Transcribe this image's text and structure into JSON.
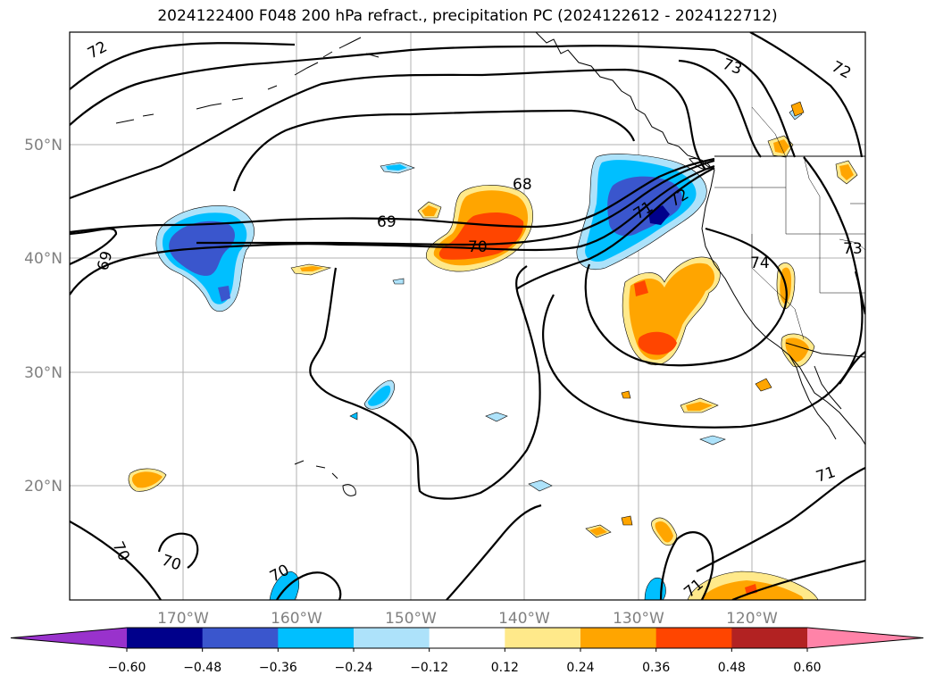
{
  "title": "2024122400 F048 200 hPa refract., precipitation PC (2024122612 - 2024122712)",
  "lon_ticks": [
    "170°W",
    "160°W",
    "150°W",
    "140°W",
    "130°W",
    "120°W"
  ],
  "lat_ticks": [
    "50°N",
    "40°N",
    "30°N",
    "20°N"
  ],
  "colorbar": {
    "ticks": [
      "−0.60",
      "−0.48",
      "−0.36",
      "−0.24",
      "−0.12",
      "0.12",
      "0.24",
      "0.36",
      "0.48",
      "0.60"
    ],
    "colors": [
      "#9932CC",
      "#00008B",
      "#3A56CD",
      "#00BFFF",
      "#ADE2FA",
      "#FFFFFF",
      "#FFE98A",
      "#FFA500",
      "#FF4500",
      "#B22222",
      "#FF83A8"
    ]
  },
  "contour_labels": [
    "72",
    "73",
    "72",
    "68",
    "69",
    "70",
    "71",
    "72",
    "74",
    "73",
    "69",
    "70",
    "70",
    "70",
    "71",
    "71"
  ],
  "colors": {
    "neg_strong": "#00008B",
    "neg_mid": "#3A56CD",
    "neg": "#00BFFF",
    "neg_weak": "#ADE2FA",
    "pos_weak": "#FFE98A",
    "pos": "#FFA500",
    "pos_mid": "#FF4500",
    "grid": "#b0b0b0"
  }
}
